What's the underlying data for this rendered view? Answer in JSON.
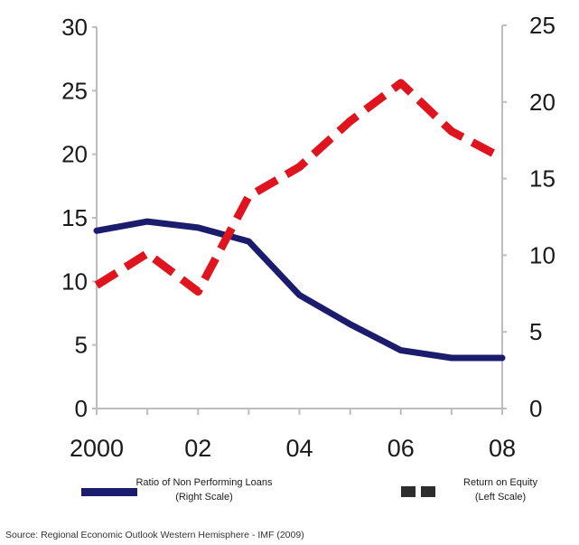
{
  "chart_data": {
    "type": "line",
    "x": [
      2000,
      2001,
      2002,
      2003,
      2004,
      2005,
      2006,
      2007,
      2008
    ],
    "x_tick_values": [
      2000,
      2002,
      2004,
      2006,
      2008
    ],
    "x_tick_labels": [
      "2000",
      "02",
      "04",
      "06",
      "08"
    ],
    "xlim": [
      2000,
      2008
    ],
    "left_axis": {
      "ylim": [
        0,
        30
      ],
      "ticks": [
        0,
        5,
        10,
        15,
        20,
        25,
        30
      ]
    },
    "right_axis": {
      "ylim": [
        0,
        25
      ],
      "ticks": [
        0,
        5,
        10,
        15,
        20,
        25
      ]
    },
    "grid": false,
    "legend_position": "bottom",
    "series": [
      {
        "name": "Ratio of Non Performing Loans",
        "legend_sub": "(Right Scale)",
        "axis": "right",
        "style": "solid",
        "color": "#1c1c6e",
        "values": [
          11.6,
          12.2,
          11.8,
          10.9,
          7.4,
          5.5,
          3.8,
          3.3,
          3.3
        ]
      },
      {
        "name": "Return on Equity",
        "legend_sub": "(Left Scale)",
        "axis": "left",
        "style": "dashed",
        "color": "#e0141e",
        "values": [
          9.7,
          12.2,
          9.2,
          16.7,
          19.0,
          22.6,
          25.6,
          21.8,
          19.7
        ]
      }
    ],
    "source": "Source: Regional Economic Outlook Western Hemisphere - IMF (2009)"
  }
}
